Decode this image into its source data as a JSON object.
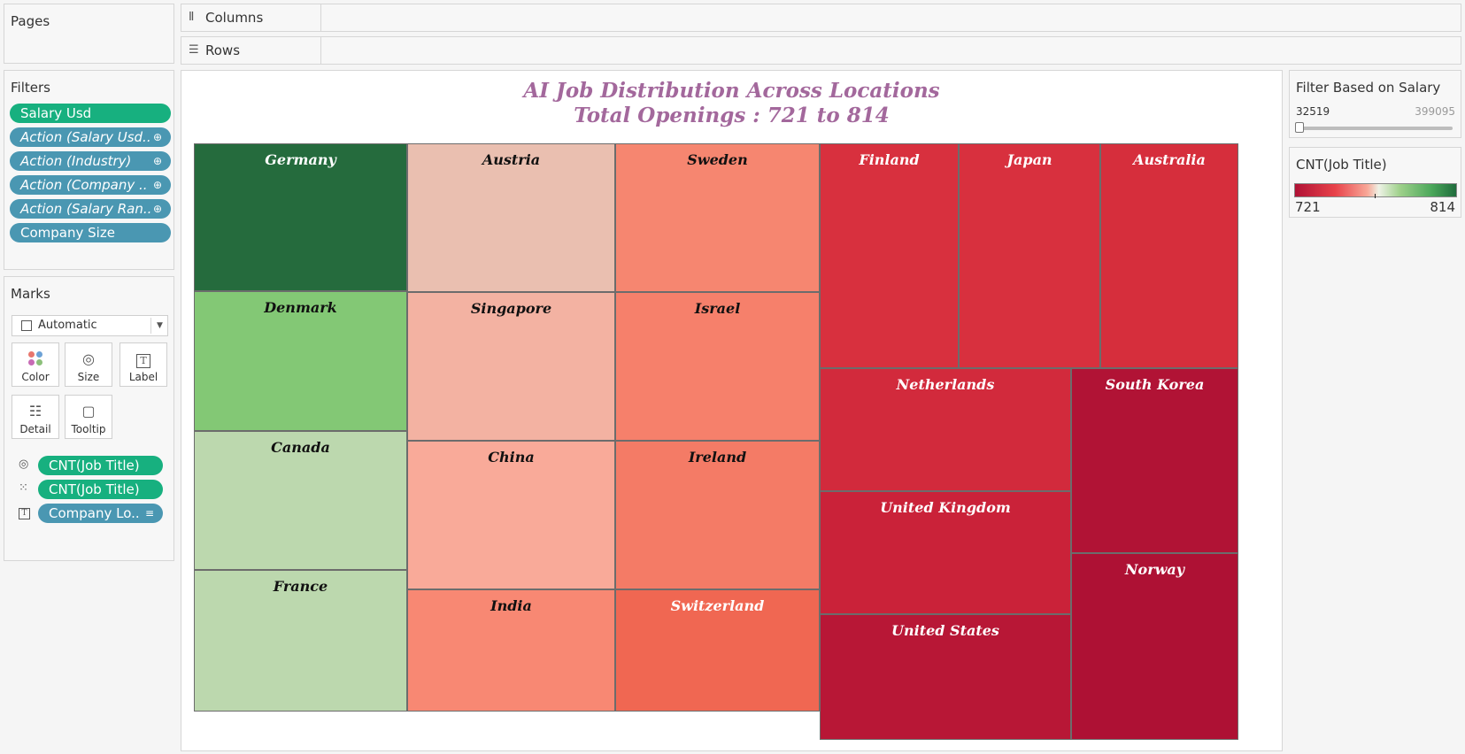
{
  "pages": {
    "title": "Pages"
  },
  "columns": {
    "label": "Columns",
    "icon": "columns-icon"
  },
  "rows": {
    "label": "Rows",
    "icon": "rows-icon"
  },
  "filters": {
    "title": "Filters",
    "pills": [
      {
        "label": "Salary Usd",
        "style": "green",
        "italic": false,
        "link": false
      },
      {
        "label": "Action (Salary Usd..",
        "style": "blue",
        "italic": true,
        "link": true
      },
      {
        "label": "Action (Industry)",
        "style": "blue",
        "italic": true,
        "link": true
      },
      {
        "label": "Action (Company ..",
        "style": "blue",
        "italic": true,
        "link": true
      },
      {
        "label": "Action (Salary Ran..",
        "style": "blue",
        "italic": true,
        "link": true
      },
      {
        "label": "Company Size",
        "style": "blue",
        "italic": false,
        "link": false
      }
    ]
  },
  "marks": {
    "title": "Marks",
    "type": "Automatic",
    "buttons": [
      {
        "label": "Color",
        "icon": "color-icon"
      },
      {
        "label": "Size",
        "icon": "size-icon"
      },
      {
        "label": "Label",
        "icon": "label-icon"
      },
      {
        "label": "Detail",
        "icon": "detail-icon"
      },
      {
        "label": "Tooltip",
        "icon": "tooltip-icon"
      }
    ],
    "fields": [
      {
        "icon": "size-icon",
        "label": "CNT(Job Title)",
        "style": "green"
      },
      {
        "icon": "color-icon",
        "label": "CNT(Job Title)",
        "style": "green"
      },
      {
        "icon": "label-icon",
        "label": "Company Lo..",
        "style": "blue"
      }
    ]
  },
  "viz": {
    "title_line1": "AI Job Distribution Across Locations",
    "title_line2": "Total Openings : 721 to 814",
    "title_color": "#a3689c"
  },
  "salary_filter": {
    "title": "Filter Based on Salary",
    "min": "32519",
    "max": "399095"
  },
  "color_legend": {
    "title": "CNT(Job Title)",
    "min": "721",
    "max": "814",
    "low_color": "#b01235",
    "high_color": "#1f6b3c"
  },
  "chart_data": {
    "type": "treemap",
    "title": "AI Job Distribution Across Locations",
    "subtitle": "Total Openings : 721 to 814",
    "color_measure": "CNT(Job Title)",
    "color_range": [
      721,
      814
    ],
    "items": [
      {
        "label": "Germany",
        "value": 814,
        "color": "#256b3d"
      },
      {
        "label": "Denmark",
        "value": 790,
        "color": "#83c875"
      },
      {
        "label": "Canada",
        "value": 775,
        "color": "#bcd8ae"
      },
      {
        "label": "France",
        "value": 774,
        "color": "#bcd8ae"
      },
      {
        "label": "Austria",
        "value": 765,
        "color": "#eabfb0"
      },
      {
        "label": "Singapore",
        "value": 763,
        "color": "#f3b2a2"
      },
      {
        "label": "China",
        "value": 761,
        "color": "#f9aa99"
      },
      {
        "label": "India",
        "value": 755,
        "color": "#f88873"
      },
      {
        "label": "Sweden",
        "value": 756,
        "color": "#f68670"
      },
      {
        "label": "Israel",
        "value": 755,
        "color": "#f6806b"
      },
      {
        "label": "Ireland",
        "value": 754,
        "color": "#f47b66"
      },
      {
        "label": "Switzerland",
        "value": 750,
        "color": "#f06752"
      },
      {
        "label": "Finland",
        "value": 735,
        "color": "#d8303e"
      },
      {
        "label": "Japan",
        "value": 734,
        "color": "#d8303e"
      },
      {
        "label": "Australia",
        "value": 733,
        "color": "#d62e3c"
      },
      {
        "label": "Netherlands",
        "value": 731,
        "color": "#d22a3c"
      },
      {
        "label": "United Kingdom",
        "value": 729,
        "color": "#ca2239"
      },
      {
        "label": "United States",
        "value": 725,
        "color": "#b81736"
      },
      {
        "label": "South Korea",
        "value": 722,
        "color": "#b11335"
      },
      {
        "label": "Norway",
        "value": 721,
        "color": "#ae1134"
      }
    ]
  }
}
